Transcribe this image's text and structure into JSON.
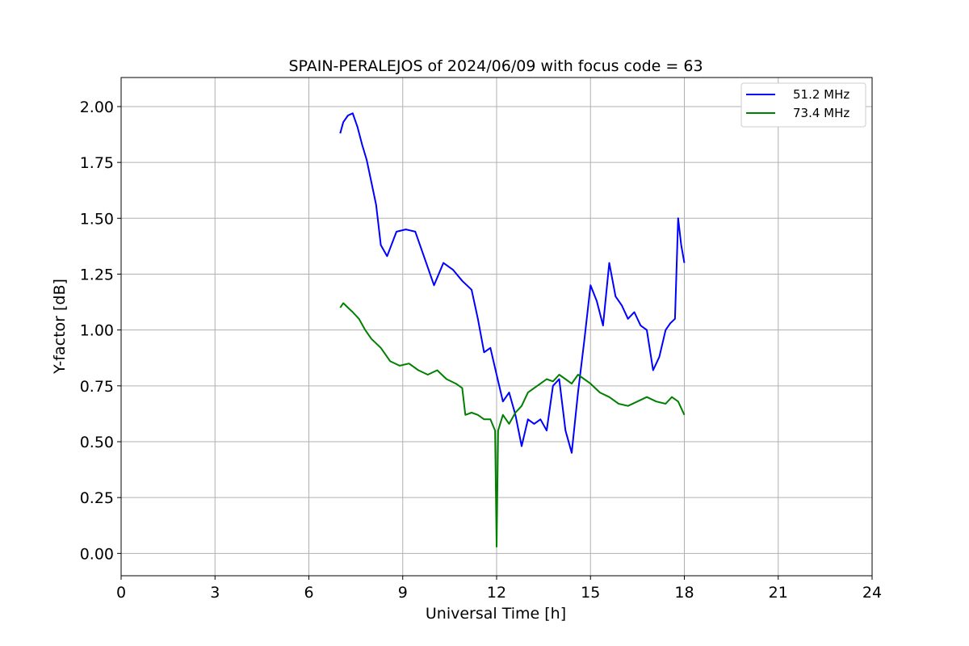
{
  "chart_data": {
    "type": "line",
    "title": "SPAIN-PERALEJOS of 2024/06/09 with focus code = 63",
    "xlabel": "Universal Time [h]",
    "ylabel": "Y-factor [dB]",
    "xlim": [
      0,
      24
    ],
    "ylim": [
      -0.1,
      2.13
    ],
    "x_ticks": [
      0,
      3,
      6,
      9,
      12,
      15,
      18,
      21,
      24
    ],
    "x_tick_labels": [
      "0",
      "3",
      "6",
      "9",
      "12",
      "15",
      "18",
      "21",
      "24"
    ],
    "y_ticks": [
      0,
      0.25,
      0.5,
      0.75,
      1.0,
      1.25,
      1.5,
      1.75,
      2.0
    ],
    "y_tick_labels": [
      "0.00",
      "0.25",
      "0.50",
      "0.75",
      "1.00",
      "1.25",
      "1.50",
      "1.75",
      "2.00"
    ],
    "grid": true,
    "legend_position": "top-right",
    "series": [
      {
        "name": "51.2 MHz",
        "color": "#0000ff",
        "x": [
          7.0,
          7.1,
          7.25,
          7.4,
          7.55,
          7.7,
          7.85,
          8.0,
          8.15,
          8.3,
          8.5,
          8.8,
          9.1,
          9.4,
          9.7,
          10.0,
          10.3,
          10.6,
          10.9,
          11.2,
          11.4,
          11.6,
          11.8,
          12.0,
          12.2,
          12.4,
          12.6,
          12.8,
          13.0,
          13.2,
          13.4,
          13.6,
          13.8,
          14.0,
          14.2,
          14.4,
          14.6,
          14.8,
          15.0,
          15.2,
          15.4,
          15.6,
          15.8,
          16.0,
          16.2,
          16.4,
          16.6,
          16.8,
          17.0,
          17.2,
          17.4,
          17.55,
          17.7,
          17.8,
          17.9,
          18.0
        ],
        "y": [
          1.88,
          1.93,
          1.96,
          1.97,
          1.91,
          1.83,
          1.76,
          1.66,
          1.56,
          1.38,
          1.33,
          1.44,
          1.45,
          1.44,
          1.32,
          1.2,
          1.3,
          1.27,
          1.22,
          1.18,
          1.05,
          0.9,
          0.92,
          0.8,
          0.68,
          0.72,
          0.62,
          0.48,
          0.6,
          0.58,
          0.6,
          0.55,
          0.75,
          0.78,
          0.55,
          0.45,
          0.72,
          0.95,
          1.2,
          1.13,
          1.02,
          1.3,
          1.15,
          1.11,
          1.05,
          1.08,
          1.02,
          1.0,
          0.82,
          0.88,
          1.0,
          1.03,
          1.05,
          1.5,
          1.38,
          1.3
        ]
      },
      {
        "name": "73.4 MHz",
        "color": "#008000",
        "x": [
          7.0,
          7.1,
          7.25,
          7.4,
          7.6,
          7.8,
          8.0,
          8.3,
          8.6,
          8.9,
          9.2,
          9.5,
          9.8,
          10.1,
          10.4,
          10.7,
          10.9,
          11.0,
          11.2,
          11.4,
          11.6,
          11.8,
          11.95,
          12.0,
          12.05,
          12.2,
          12.4,
          12.6,
          12.8,
          13.0,
          13.2,
          13.4,
          13.6,
          13.8,
          14.0,
          14.2,
          14.4,
          14.6,
          14.8,
          15.0,
          15.3,
          15.6,
          15.9,
          16.2,
          16.5,
          16.8,
          17.1,
          17.4,
          17.6,
          17.8,
          18.0
        ],
        "y": [
          1.1,
          1.12,
          1.1,
          1.08,
          1.05,
          1.0,
          0.96,
          0.92,
          0.86,
          0.84,
          0.85,
          0.82,
          0.8,
          0.82,
          0.78,
          0.76,
          0.74,
          0.62,
          0.63,
          0.62,
          0.6,
          0.6,
          0.55,
          0.03,
          0.55,
          0.62,
          0.58,
          0.63,
          0.66,
          0.72,
          0.74,
          0.76,
          0.78,
          0.77,
          0.8,
          0.78,
          0.76,
          0.8,
          0.78,
          0.76,
          0.72,
          0.7,
          0.67,
          0.66,
          0.68,
          0.7,
          0.68,
          0.67,
          0.7,
          0.68,
          0.62
        ]
      }
    ]
  }
}
